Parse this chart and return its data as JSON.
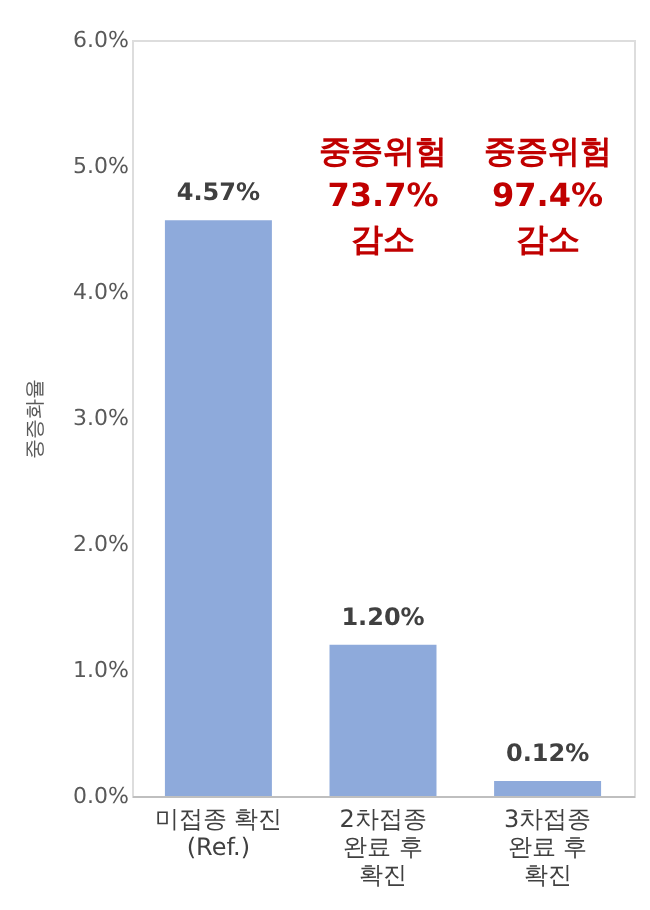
{
  "chart_data": {
    "type": "bar",
    "ylabel": "중증화율",
    "categories": [
      "미접종 확진\n(Ref.)",
      "2차접종\n완료 후\n확진",
      "3차접종\n완료 후\n확진"
    ],
    "values": [
      4.57,
      1.2,
      0.12
    ],
    "value_labels": [
      "4.57%",
      "1.20%",
      "0.12%"
    ],
    "color": "#8eaadb",
    "ylim": [
      0,
      6
    ],
    "yticks": [
      {
        "value": 0,
        "label": "0.0%"
      },
      {
        "value": 1,
        "label": "1.0%"
      },
      {
        "value": 2,
        "label": "2.0%"
      },
      {
        "value": 3,
        "label": "3.0%"
      },
      {
        "value": 4,
        "label": "4.0%"
      },
      {
        "value": 5,
        "label": "5.0%"
      },
      {
        "value": 6,
        "label": "6.0%"
      }
    ],
    "grid": false,
    "annotations": [
      "중증위험\n73.7%\n감소",
      "중증위험\n97.4%\n감소"
    ]
  }
}
